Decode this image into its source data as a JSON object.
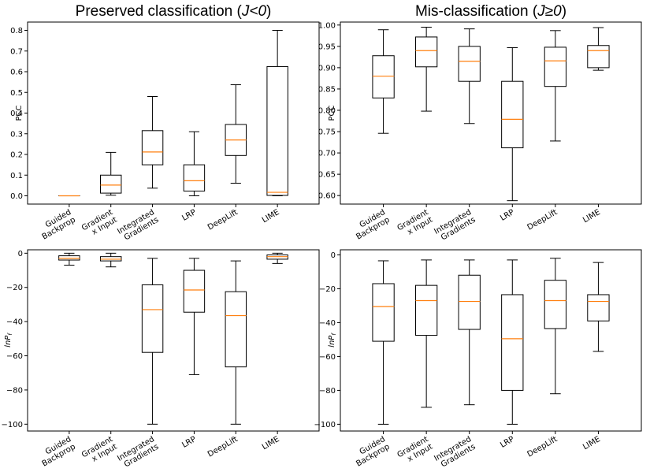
{
  "column_titles": {
    "left": {
      "main": "Preserved classification (",
      "italic": "J<0",
      "tail": ")"
    },
    "right": {
      "main": "Mis-classification (",
      "italic": "J≥0",
      "tail": ")"
    }
  },
  "colors": {
    "median": "#ff7f0e",
    "box": "#000000",
    "frame": "#000000"
  },
  "chart_data": [
    {
      "type": "box",
      "title": "Preserved classification (J<0)",
      "ylabel": "PCC",
      "ylim": [
        -0.04,
        0.84
      ],
      "yticks": [
        0.0,
        0.1,
        0.2,
        0.3,
        0.4,
        0.5,
        0.6,
        0.7,
        0.8
      ],
      "ytick_labels": [
        "0.0",
        "0.1",
        "0.2",
        "0.3",
        "0.4",
        "0.5",
        "0.6",
        "0.7",
        "0.8"
      ],
      "categories": [
        [
          "Guided",
          "Backprop"
        ],
        [
          "Gradient",
          "x Input"
        ],
        [
          "Integrated",
          "Gradients"
        ],
        [
          "LRP"
        ],
        [
          "DeepLift"
        ],
        [
          "LIME"
        ]
      ],
      "boxes": [
        {
          "min": 0.0,
          "q1": 0.0,
          "median": 0.0,
          "q3": 0.0,
          "max": 0.0
        },
        {
          "min": 0.003,
          "q1": 0.013,
          "median": 0.052,
          "q3": 0.1,
          "max": 0.21
        },
        {
          "min": 0.037,
          "q1": 0.15,
          "median": 0.212,
          "q3": 0.315,
          "max": 0.48
        },
        {
          "min": 0.0,
          "q1": 0.023,
          "median": 0.073,
          "q3": 0.15,
          "max": 0.31
        },
        {
          "min": 0.061,
          "q1": 0.195,
          "median": 0.27,
          "q3": 0.345,
          "max": 0.537
        },
        {
          "min": 0.0,
          "q1": 0.002,
          "median": 0.017,
          "q3": 0.625,
          "max": 0.8
        }
      ]
    },
    {
      "type": "box",
      "title": "Mis-classification (J≥0)",
      "ylabel": "PCC",
      "ylim": [
        0.58,
        1.007
      ],
      "yticks": [
        0.6,
        0.65,
        0.7,
        0.75,
        0.8,
        0.85,
        0.9,
        0.95,
        1.0
      ],
      "ytick_labels": [
        "0.60",
        "0.65",
        "0.70",
        "0.75",
        "0.80",
        "0.85",
        "0.90",
        "0.95",
        "1.00"
      ],
      "categories": [
        [
          "Guided",
          "Backprop"
        ],
        [
          "Gradient",
          "x Input"
        ],
        [
          "Integrated",
          "Gradients"
        ],
        [
          "LRP"
        ],
        [
          "DeepLift"
        ],
        [
          "LIME"
        ]
      ],
      "boxes": [
        {
          "min": 0.746,
          "q1": 0.829,
          "median": 0.88,
          "q3": 0.928,
          "max": 0.989
        },
        {
          "min": 0.798,
          "q1": 0.902,
          "median": 0.94,
          "q3": 0.972,
          "max": 0.995
        },
        {
          "min": 0.769,
          "q1": 0.868,
          "median": 0.915,
          "q3": 0.95,
          "max": 0.991
        },
        {
          "min": 0.588,
          "q1": 0.712,
          "median": 0.779,
          "q3": 0.868,
          "max": 0.947
        },
        {
          "min": 0.728,
          "q1": 0.856,
          "median": 0.916,
          "q3": 0.948,
          "max": 0.987
        },
        {
          "min": 0.894,
          "q1": 0.9,
          "median": 0.94,
          "q3": 0.952,
          "max": 0.994
        }
      ]
    },
    {
      "type": "box",
      "title": "",
      "ylabel": "lnP_f",
      "ylim": [
        -104,
        2
      ],
      "yticks": [
        0,
        -20,
        -40,
        -60,
        -80,
        -100
      ],
      "ytick_labels": [
        "0",
        "−20",
        "−40",
        "−60",
        "−80",
        "−100"
      ],
      "categories": [
        [
          "Guided",
          "Backprop"
        ],
        [
          "Gradient",
          "x Input"
        ],
        [
          "Integrated",
          "Gradients"
        ],
        [
          "LRP"
        ],
        [
          "DeepLift"
        ],
        [
          "LIME"
        ]
      ],
      "boxes": [
        {
          "min": -7,
          "q1": -4,
          "median": -3,
          "q3": -1.5,
          "max": 0
        },
        {
          "min": -8,
          "q1": -4.5,
          "median": -3.5,
          "q3": -2,
          "max": 0
        },
        {
          "min": -100,
          "q1": -58,
          "median": -33,
          "q3": -18.5,
          "max": -3
        },
        {
          "min": -71,
          "q1": -34.5,
          "median": -21.5,
          "q3": -10,
          "max": -3
        },
        {
          "min": -100,
          "q1": -66.5,
          "median": -36.5,
          "q3": -22.5,
          "max": -4.5
        },
        {
          "min": -6,
          "q1": -3.5,
          "median": -2,
          "q3": -1,
          "max": 0
        }
      ]
    },
    {
      "type": "box",
      "title": "",
      "ylabel": "lnP_f",
      "ylim": [
        -104,
        3
      ],
      "yticks": [
        0,
        -20,
        -40,
        -60,
        -80,
        -100
      ],
      "ytick_labels": [
        "0",
        "−20",
        "−40",
        "−60",
        "−80",
        "−100"
      ],
      "categories": [
        [
          "Guided",
          "Backprop"
        ],
        [
          "Gradient",
          "x Input"
        ],
        [
          "Integrated",
          "Gradients"
        ],
        [
          "LRP"
        ],
        [
          "DeepLift"
        ],
        [
          "LIME"
        ]
      ],
      "boxes": [
        {
          "min": -100,
          "q1": -51,
          "median": -30.5,
          "q3": -17,
          "max": -3.5
        },
        {
          "min": -90,
          "q1": -47.5,
          "median": -27,
          "q3": -18,
          "max": -3
        },
        {
          "min": -88.5,
          "q1": -44,
          "median": -27.5,
          "q3": -12,
          "max": -3
        },
        {
          "min": -100,
          "q1": -80,
          "median": -49.5,
          "q3": -23.5,
          "max": -3
        },
        {
          "min": -82,
          "q1": -43.5,
          "median": -27,
          "q3": -15,
          "max": -2
        },
        {
          "min": -57,
          "q1": -39,
          "median": -27.5,
          "q3": -23.5,
          "max": -4.5
        }
      ]
    }
  ]
}
